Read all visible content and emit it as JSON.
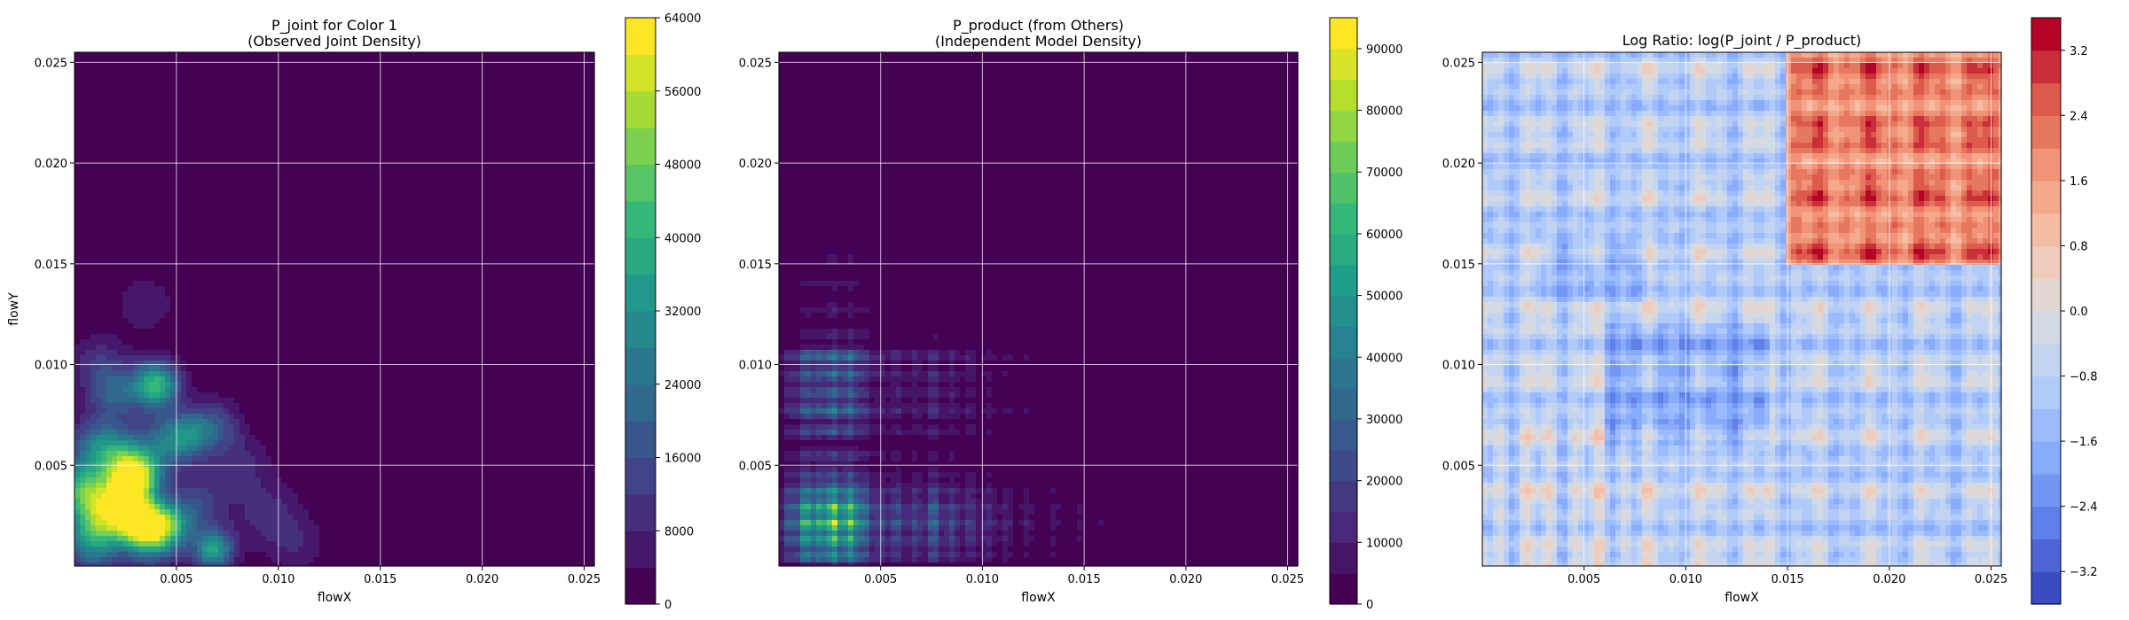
{
  "chart_data": [
    {
      "type": "heatmap",
      "title_line1": "P_joint for Color 1",
      "title_line2": "(Observed Joint Density)",
      "xlabel": "flowX",
      "ylabel": "flowY",
      "xlim": [
        0.0,
        0.0255
      ],
      "ylim": [
        0.0,
        0.0255
      ],
      "x_ticks": [
        "0.005",
        "0.010",
        "0.015",
        "0.020",
        "0.025"
      ],
      "y_ticks": [
        "0.005",
        "0.010",
        "0.015",
        "0.020",
        "0.025"
      ],
      "grid": true,
      "colormap": "viridis",
      "colorbar": {
        "min": 0,
        "max": 64000,
        "ticks": [
          "0",
          "8000",
          "16000",
          "24000",
          "32000",
          "40000",
          "48000",
          "56000",
          "64000"
        ]
      },
      "hotspots": [
        {
          "x": 0.0003,
          "y": 0.0038,
          "v": 0.55,
          "s": 0.0009
        },
        {
          "x": 0.001,
          "y": 0.006,
          "v": 0.3,
          "s": 0.001
        },
        {
          "x": 0.0018,
          "y": 0.0028,
          "v": 0.45,
          "s": 0.001
        },
        {
          "x": 0.002,
          "y": 0.0085,
          "v": 0.28,
          "s": 0.0009
        },
        {
          "x": 0.0025,
          "y": 0.0035,
          "v": 0.4,
          "s": 0.0009
        },
        {
          "x": 0.003,
          "y": 0.0045,
          "v": 0.8,
          "s": 0.0008
        },
        {
          "x": 0.0032,
          "y": 0.0022,
          "v": 0.75,
          "s": 0.0008
        },
        {
          "x": 0.0037,
          "y": 0.0012,
          "v": 0.35,
          "s": 0.0009
        },
        {
          "x": 0.004,
          "y": 0.009,
          "v": 0.65,
          "s": 0.0008
        },
        {
          "x": 0.0045,
          "y": 0.002,
          "v": 0.55,
          "s": 0.0008
        },
        {
          "x": 0.0042,
          "y": 0.006,
          "v": 0.3,
          "s": 0.001
        },
        {
          "x": 0.0055,
          "y": 0.0065,
          "v": 0.35,
          "s": 0.0008
        },
        {
          "x": 0.002,
          "y": 0.0055,
          "v": 0.35,
          "s": 0.0009
        },
        {
          "x": 0.0068,
          "y": 0.0008,
          "v": 0.55,
          "s": 0.0007
        },
        {
          "x": 0.0068,
          "y": 0.007,
          "v": 0.25,
          "s": 0.0009
        },
        {
          "x": 0.0008,
          "y": 0.001,
          "v": 0.3,
          "s": 0.001
        },
        {
          "x": 0.001,
          "y": 0.002,
          "v": 0.3,
          "s": 0.001
        },
        {
          "x": 0.0095,
          "y": 0.0025,
          "v": 0.15,
          "s": 0.0012
        },
        {
          "x": 0.0035,
          "y": 0.013,
          "v": 0.12,
          "s": 0.001
        },
        {
          "x": 0.006,
          "y": 0.003,
          "v": 0.22,
          "s": 0.001
        },
        {
          "x": 0.0012,
          "y": 0.01,
          "v": 0.18,
          "s": 0.001
        },
        {
          "x": 0.008,
          "y": 0.005,
          "v": 0.15,
          "s": 0.0011
        },
        {
          "x": 0.011,
          "y": 0.001,
          "v": 0.1,
          "s": 0.001
        }
      ]
    },
    {
      "type": "heatmap",
      "title_line1": "P_product (from Others)",
      "title_line2": "(Independent Model Density)",
      "xlabel": "flowX",
      "ylabel": "",
      "xlim": [
        0.0,
        0.0255
      ],
      "ylim": [
        0.0,
        0.0255
      ],
      "x_ticks": [
        "0.005",
        "0.010",
        "0.015",
        "0.020",
        "0.025"
      ],
      "y_ticks": [
        "0.005",
        "0.010",
        "0.015",
        "0.020",
        "0.025"
      ],
      "grid": true,
      "colormap": "viridis",
      "colorbar": {
        "min": 0,
        "max": 95000,
        "ticks": [
          "0",
          "10000",
          "20000",
          "30000",
          "40000",
          "50000",
          "60000",
          "70000",
          "80000",
          "90000"
        ]
      },
      "x_bands": [
        {
          "c": 0.0005,
          "w": 0.4
        },
        {
          "c": 0.0013,
          "w": 0.8
        },
        {
          "c": 0.002,
          "w": 0.7
        },
        {
          "c": 0.0027,
          "w": 1.0
        },
        {
          "c": 0.0035,
          "w": 0.9
        },
        {
          "c": 0.0042,
          "w": 0.5
        },
        {
          "c": 0.005,
          "w": 0.3
        },
        {
          "c": 0.0058,
          "w": 0.35
        },
        {
          "c": 0.0067,
          "w": 0.3
        },
        {
          "c": 0.0076,
          "w": 0.45
        },
        {
          "c": 0.0085,
          "w": 0.3
        },
        {
          "c": 0.0094,
          "w": 0.25
        },
        {
          "c": 0.0103,
          "w": 0.2
        },
        {
          "c": 0.0112,
          "w": 0.15
        },
        {
          "c": 0.0122,
          "w": 0.12
        },
        {
          "c": 0.0135,
          "w": 0.1
        },
        {
          "c": 0.0148,
          "w": 0.08
        },
        {
          "c": 0.0158,
          "w": 0.06
        }
      ],
      "y_bands": [
        {
          "c": 0.0005,
          "w": 0.6
        },
        {
          "c": 0.0013,
          "w": 0.8
        },
        {
          "c": 0.0021,
          "w": 1.0
        },
        {
          "c": 0.0029,
          "w": 0.9
        },
        {
          "c": 0.0037,
          "w": 0.6
        },
        {
          "c": 0.0045,
          "w": 0.3
        },
        {
          "c": 0.0055,
          "w": 0.25
        },
        {
          "c": 0.0067,
          "w": 0.35
        },
        {
          "c": 0.0077,
          "w": 0.5
        },
        {
          "c": 0.0086,
          "w": 0.4
        },
        {
          "c": 0.0095,
          "w": 0.45
        },
        {
          "c": 0.0104,
          "w": 0.5
        },
        {
          "c": 0.0115,
          "w": 0.15
        },
        {
          "c": 0.0127,
          "w": 0.12
        },
        {
          "c": 0.014,
          "w": 0.1
        },
        {
          "c": 0.0152,
          "w": 0.08
        }
      ]
    },
    {
      "type": "heatmap",
      "title_line1": "Log Ratio: log(P_joint / P_product)",
      "title_line2": "",
      "xlabel": "flowX",
      "ylabel": "",
      "xlim": [
        0.0,
        0.0255
      ],
      "ylim": [
        0.0,
        0.0255
      ],
      "x_ticks": [
        "0.005",
        "0.010",
        "0.015",
        "0.020",
        "0.025"
      ],
      "y_ticks": [
        "0.005",
        "0.010",
        "0.015",
        "0.020",
        "0.025"
      ],
      "grid": true,
      "colormap": "coolwarm",
      "colorbar": {
        "min": -3.6,
        "max": 3.6,
        "ticks": [
          "−3.2",
          "−2.4",
          "−1.6",
          "−0.8",
          "0.0",
          "0.8",
          "1.6",
          "2.4",
          "3.2"
        ]
      }
    }
  ]
}
